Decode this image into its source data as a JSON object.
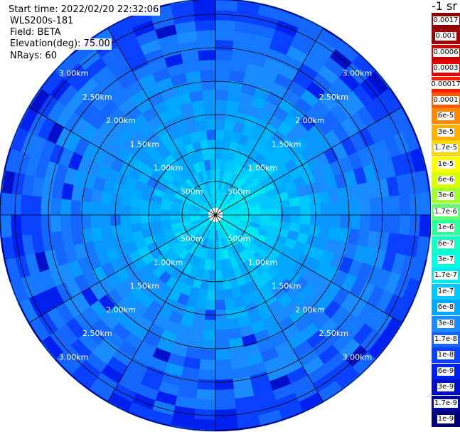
{
  "info": {
    "start_time": "Start time: 2022/02/20 22:32:06",
    "instrument": "WLS200s-181",
    "field": "Field: BETA",
    "elevation": "Elevation(deg): 75.00",
    "nrays": "NRays: 60"
  },
  "range_labels": [
    "500m",
    "1.00km",
    "1.50km",
    "2.00km",
    "2.50km",
    "3.00km"
  ],
  "colorscale": {
    "title": "-1 sr",
    "stops": [
      {
        "label": "0.0017",
        "color": "#8b0000"
      },
      {
        "label": "0.001",
        "color": "#a00000"
      },
      {
        "label": "0.0006",
        "color": "#c80000"
      },
      {
        "label": "0.0003",
        "color": "#e80000"
      },
      {
        "label": "0.00017",
        "color": "#ff1a00"
      },
      {
        "label": "0.0001",
        "color": "#ff5a00"
      },
      {
        "label": "6e-5",
        "color": "#ff8a00"
      },
      {
        "label": "3e-5",
        "color": "#ffb000"
      },
      {
        "label": "1.7e-5",
        "color": "#ffd800"
      },
      {
        "label": "1e-5",
        "color": "#ffff00"
      },
      {
        "label": "6e-6",
        "color": "#d8ff00"
      },
      {
        "label": "3e-6",
        "color": "#a0ff30"
      },
      {
        "label": "1.7e-6",
        "color": "#60ff70"
      },
      {
        "label": "1e-6",
        "color": "#30ffa0"
      },
      {
        "label": "6e-7",
        "color": "#10ffc8"
      },
      {
        "label": "3e-7",
        "color": "#00ffe0"
      },
      {
        "label": "1.7e-7",
        "color": "#00e8f0"
      },
      {
        "label": "1e-7",
        "color": "#00c8ff"
      },
      {
        "label": "6e-8",
        "color": "#00a8ff"
      },
      {
        "label": "3e-8",
        "color": "#1a8cff"
      },
      {
        "label": "1.7e-8",
        "color": "#1466ff"
      },
      {
        "label": "1e-8",
        "color": "#0a40ff"
      },
      {
        "label": "6e-9",
        "color": "#0020f0"
      },
      {
        "label": "3e-9",
        "color": "#0010c8"
      },
      {
        "label": "1.7e-9",
        "color": "#0008a0"
      },
      {
        "label": "1e-9",
        "color": "#000078"
      }
    ]
  },
  "colors": {
    "grid": "#000000",
    "range_label": "#ffffff",
    "center": "#ffffff"
  }
}
